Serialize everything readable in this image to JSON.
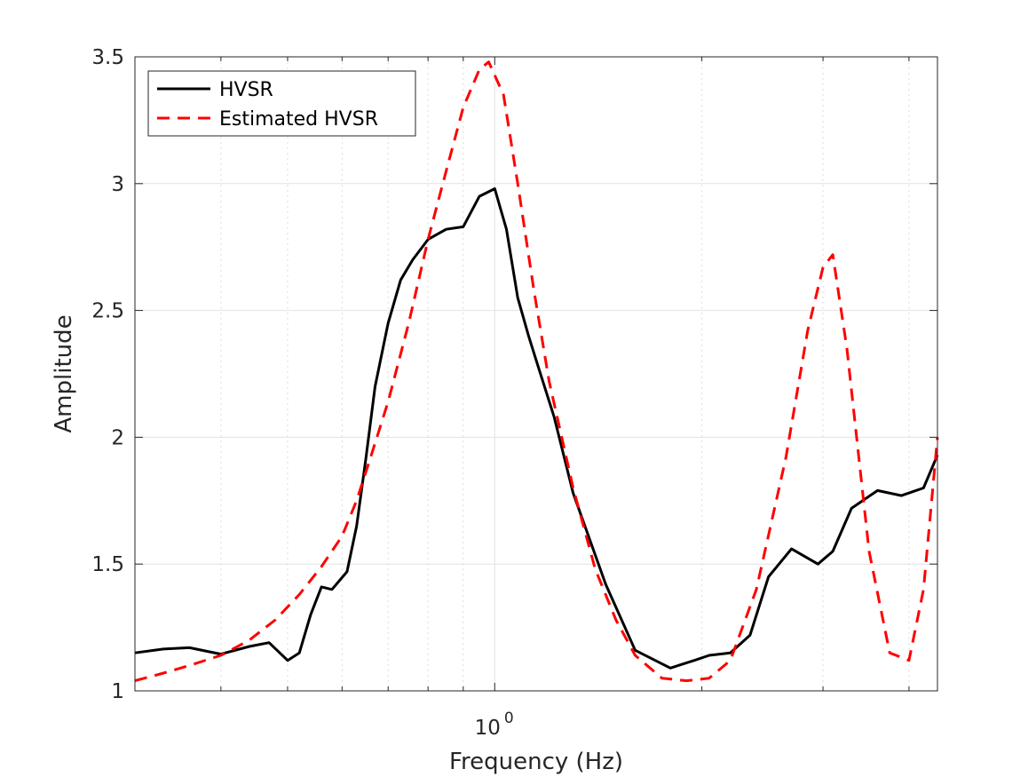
{
  "chart_data": {
    "type": "line",
    "xlabel": "Frequency (Hz)",
    "ylabel": "Amplitude",
    "xscale": "log",
    "xlim": [
      0.3,
      4.4
    ],
    "ylim": [
      1,
      3.5
    ],
    "yticks": [
      1,
      1.5,
      2,
      2.5,
      3,
      3.5
    ],
    "ytick_labels": [
      "1",
      "1.5",
      "2",
      "2.5",
      "3",
      "3.5"
    ],
    "xticks": [
      1
    ],
    "xtick_labels": [
      "10"
    ],
    "xtick_exponents": [
      "0"
    ],
    "grid": true,
    "legend_position": "top-left",
    "series": [
      {
        "name": "HVSR",
        "color": "#000000",
        "style": "solid",
        "x": [
          0.3,
          0.33,
          0.36,
          0.4,
          0.44,
          0.47,
          0.5,
          0.52,
          0.54,
          0.56,
          0.58,
          0.61,
          0.63,
          0.65,
          0.67,
          0.7,
          0.73,
          0.76,
          0.8,
          0.85,
          0.9,
          0.95,
          1.0,
          1.04,
          1.08,
          1.12,
          1.15,
          1.22,
          1.3,
          1.45,
          1.6,
          1.8,
          1.95,
          2.05,
          2.2,
          2.35,
          2.5,
          2.7,
          2.95,
          3.1,
          3.3,
          3.6,
          3.9,
          4.2,
          4.4
        ],
        "y": [
          1.15,
          1.165,
          1.17,
          1.145,
          1.175,
          1.19,
          1.12,
          1.15,
          1.3,
          1.41,
          1.4,
          1.47,
          1.65,
          1.92,
          2.2,
          2.45,
          2.62,
          2.7,
          2.78,
          2.82,
          2.83,
          2.95,
          2.98,
          2.82,
          2.55,
          2.4,
          2.3,
          2.08,
          1.78,
          1.42,
          1.16,
          1.09,
          1.12,
          1.14,
          1.15,
          1.22,
          1.45,
          1.56,
          1.5,
          1.55,
          1.72,
          1.79,
          1.77,
          1.8,
          1.93
        ]
      },
      {
        "name": "Estimated HVSR",
        "color": "#ff0000",
        "style": "dashed",
        "x": [
          0.3,
          0.33,
          0.36,
          0.4,
          0.44,
          0.48,
          0.52,
          0.56,
          0.6,
          0.63,
          0.66,
          0.7,
          0.75,
          0.8,
          0.85,
          0.9,
          0.95,
          0.98,
          1.03,
          1.08,
          1.14,
          1.2,
          1.3,
          1.4,
          1.5,
          1.6,
          1.75,
          1.9,
          2.05,
          2.2,
          2.4,
          2.65,
          2.85,
          3.0,
          3.1,
          3.25,
          3.5,
          3.75,
          4.0,
          4.2,
          4.4
        ],
        "y": [
          1.04,
          1.07,
          1.1,
          1.14,
          1.2,
          1.28,
          1.38,
          1.49,
          1.61,
          1.75,
          1.92,
          2.14,
          2.45,
          2.78,
          3.05,
          3.3,
          3.45,
          3.48,
          3.35,
          3.0,
          2.58,
          2.22,
          1.8,
          1.48,
          1.28,
          1.14,
          1.05,
          1.04,
          1.05,
          1.12,
          1.4,
          1.92,
          2.42,
          2.67,
          2.72,
          2.35,
          1.55,
          1.15,
          1.12,
          1.4,
          2.0
        ]
      }
    ]
  }
}
